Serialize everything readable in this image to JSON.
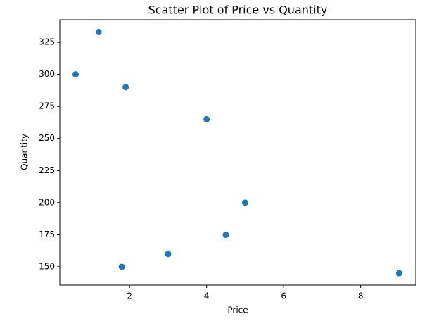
{
  "chart_data": {
    "type": "scatter",
    "title": "Scatter Plot of Price vs Quantity",
    "x_label": "Price",
    "y_label": "Quantity",
    "x": [
      0.6,
      1.2,
      1.9,
      1.8,
      3.0,
      4.0,
      4.5,
      5.0,
      9.0
    ],
    "values": [
      300,
      333,
      290,
      150,
      160,
      265,
      175,
      200,
      145
    ],
    "color": "#1f77b4",
    "xlim": [
      0.19,
      9.43
    ],
    "xticks": [
      2,
      4,
      6,
      8
    ],
    "ylim": [
      135.7,
      342.6
    ],
    "yticks": [
      150,
      175,
      200,
      225,
      250,
      275,
      300,
      325
    ]
  }
}
